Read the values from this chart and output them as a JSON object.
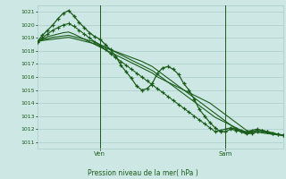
{
  "xlabel": "Pression niveau de la mer( hPa )",
  "ylim": [
    1010.5,
    1021.5
  ],
  "xlim": [
    0,
    47
  ],
  "yticks": [
    1011,
    1012,
    1013,
    1014,
    1015,
    1016,
    1017,
    1018,
    1019,
    1020,
    1021
  ],
  "ven_x": 12,
  "sam_x": 36,
  "bg_color": "#cde8e4",
  "grid_color": "#a8ccc8",
  "line_color": "#1a5c1a",
  "series": [
    [
      1018.7,
      1019.2,
      1019.6,
      1020.0,
      1020.5,
      1020.9,
      1021.1,
      1020.7,
      1020.2,
      1019.8,
      1019.4,
      1019.1,
      1018.9,
      1018.5,
      1018.1,
      1017.6,
      1016.9,
      1016.4,
      1015.9,
      1015.3,
      1015.0,
      1015.1,
      1015.5,
      1016.3,
      1016.7,
      1016.8,
      1016.6,
      1016.2,
      1015.5,
      1015.0,
      1014.3,
      1013.5,
      1013.0,
      1012.5,
      1012.1,
      1011.8,
      1011.8,
      1012.0,
      1011.9,
      1011.8,
      1011.7,
      1011.7,
      1011.8,
      1011.9,
      1011.8,
      1011.7,
      1011.6,
      1011.5
    ],
    [
      1018.7,
      1019.0,
      1019.3,
      1019.6,
      1019.8,
      1020.0,
      1020.1,
      1019.9,
      1019.6,
      1019.3,
      1019.0,
      1018.7,
      1018.4,
      1018.1,
      1017.8,
      1017.5,
      1017.2,
      1016.9,
      1016.6,
      1016.3,
      1016.0,
      1015.7,
      1015.4,
      1015.1,
      1014.8,
      1014.5,
      1014.2,
      1013.9,
      1013.6,
      1013.3,
      1013.0,
      1012.7,
      1012.4,
      1012.1,
      1011.8,
      1011.9,
      1012.0,
      1012.1,
      1012.0,
      1011.9,
      1011.8,
      1011.9,
      1012.0,
      1011.9,
      1011.8,
      1011.7,
      1011.6,
      1011.5
    ],
    [
      1018.7,
      1018.9,
      1019.1,
      1019.2,
      1019.3,
      1019.4,
      1019.45,
      1019.3,
      1019.1,
      1018.9,
      1018.7,
      1018.5,
      1018.3,
      1018.1,
      1017.9,
      1017.7,
      1017.5,
      1017.3,
      1017.1,
      1016.9,
      1016.7,
      1016.5,
      1016.3,
      1016.0,
      1015.8,
      1015.6,
      1015.4,
      1015.2,
      1015.0,
      1014.8,
      1014.6,
      1014.4,
      1014.2,
      1014.0,
      1013.7,
      1013.4,
      1013.1,
      1012.8,
      1012.5,
      1012.2,
      1011.9,
      1011.8,
      1011.9,
      1011.8,
      1011.7,
      1011.6,
      1011.55,
      1011.5
    ],
    [
      1018.7,
      1018.85,
      1018.95,
      1019.05,
      1019.1,
      1019.15,
      1019.2,
      1019.1,
      1019.0,
      1018.9,
      1018.8,
      1018.7,
      1018.5,
      1018.3,
      1018.1,
      1017.9,
      1017.7,
      1017.5,
      1017.3,
      1017.1,
      1016.9,
      1016.7,
      1016.5,
      1016.2,
      1015.9,
      1015.6,
      1015.3,
      1015.0,
      1014.7,
      1014.4,
      1014.1,
      1013.8,
      1013.5,
      1013.2,
      1012.9,
      1012.7,
      1012.5,
      1012.3,
      1012.1,
      1011.9,
      1011.7,
      1011.8,
      1011.9,
      1011.8,
      1011.7,
      1011.65,
      1011.6,
      1011.55
    ],
    [
      1018.7,
      1018.8,
      1018.85,
      1018.9,
      1018.95,
      1019.0,
      1019.05,
      1018.95,
      1018.85,
      1018.75,
      1018.65,
      1018.55,
      1018.4,
      1018.25,
      1018.1,
      1017.95,
      1017.8,
      1017.65,
      1017.5,
      1017.35,
      1017.2,
      1017.0,
      1016.8,
      1016.5,
      1016.2,
      1015.9,
      1015.6,
      1015.3,
      1015.0,
      1014.7,
      1014.4,
      1014.1,
      1013.8,
      1013.5,
      1013.2,
      1012.9,
      1012.6,
      1012.3,
      1012.0,
      1011.8,
      1011.6,
      1011.7,
      1011.75,
      1011.7,
      1011.65,
      1011.6,
      1011.58,
      1011.55
    ]
  ]
}
